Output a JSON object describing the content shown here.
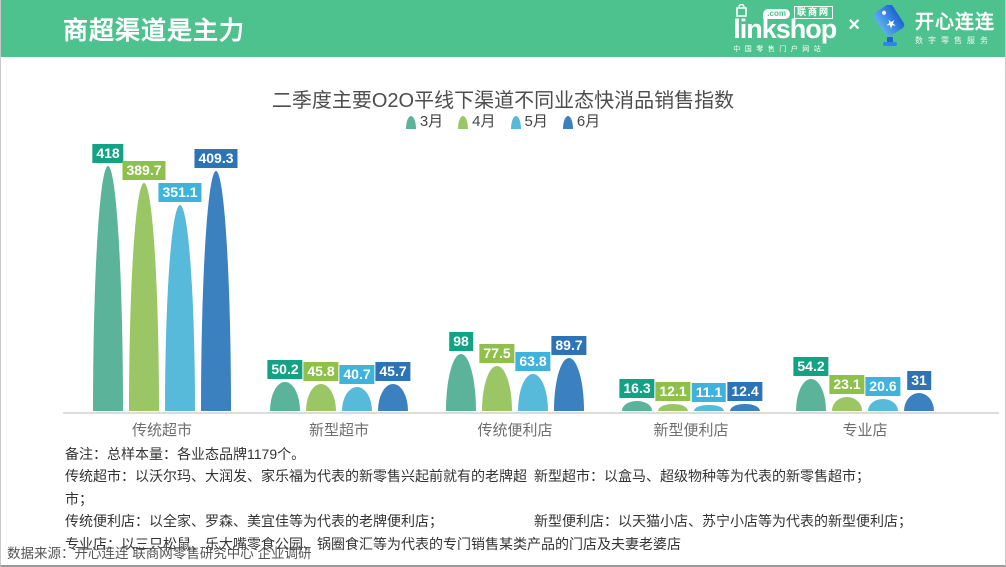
{
  "header": {
    "title": "商超渠道是主力",
    "bg_color": "#4ec28e",
    "logos": {
      "linkshop": {
        "name": "linkshop",
        "com_badge": ".com",
        "cn": "联商网",
        "tagline": "中国零售门户网站"
      },
      "separator": "×",
      "kaixin": {
        "name": "开心连连",
        "tagline": "数字零售服务",
        "tag_colors": [
          "#5cb0f2",
          "#1d64d2"
        ]
      }
    }
  },
  "chart_data": {
    "type": "bar",
    "title": "二季度主要O2O平线下渠道不同业态快消品销售指数",
    "categories": [
      "传统超市",
      "新型超市",
      "传统便利店",
      "新型便利店",
      "专业店"
    ],
    "series": [
      {
        "name": "3月",
        "bar_color": "#5bb499",
        "label_bg": "#14a285",
        "values": [
          418,
          50.2,
          98,
          16.3,
          54.2
        ]
      },
      {
        "name": "4月",
        "bar_color": "#9ac666",
        "label_bg": "#8ec04b",
        "values": [
          389.7,
          45.8,
          77.5,
          12.1,
          23.1
        ]
      },
      {
        "name": "5月",
        "bar_color": "#57badb",
        "label_bg": "#3fb3dc",
        "values": [
          351.1,
          40.7,
          63.8,
          11.1,
          20.6
        ]
      },
      {
        "name": "6月",
        "bar_color": "#3c81bf",
        "label_bg": "#2d74b7",
        "values": [
          409.3,
          45.7,
          89.7,
          12.4,
          31
        ]
      }
    ],
    "ylim": [
      0,
      440
    ],
    "grid": false,
    "legend_position": "top",
    "xlabel": "",
    "ylabel": ""
  },
  "notes": {
    "line1": "备注：总样本量：各业态品牌1179个。",
    "col_left": [
      "传统超市：以沃尔玛、大润发、家乐福为代表的新零售兴起前就有的老牌超市；",
      "传统便利店：以全家、罗森、美宜佳等为代表的老牌便利店；"
    ],
    "col_right": [
      "新型超市：以盒马、超级物种等为代表的新零售超市；",
      "新型便利店：以天猫小店、苏宁小店等为代表的新型便利店；"
    ],
    "line4": "专业店：以三只松鼠、乐大嘴零食公园、锅圈食汇等为代表的专门销售某类产品的门店及夫妻老婆店"
  },
  "source": "数据来源：开心连连 联商网零售研究中心 企业调研"
}
